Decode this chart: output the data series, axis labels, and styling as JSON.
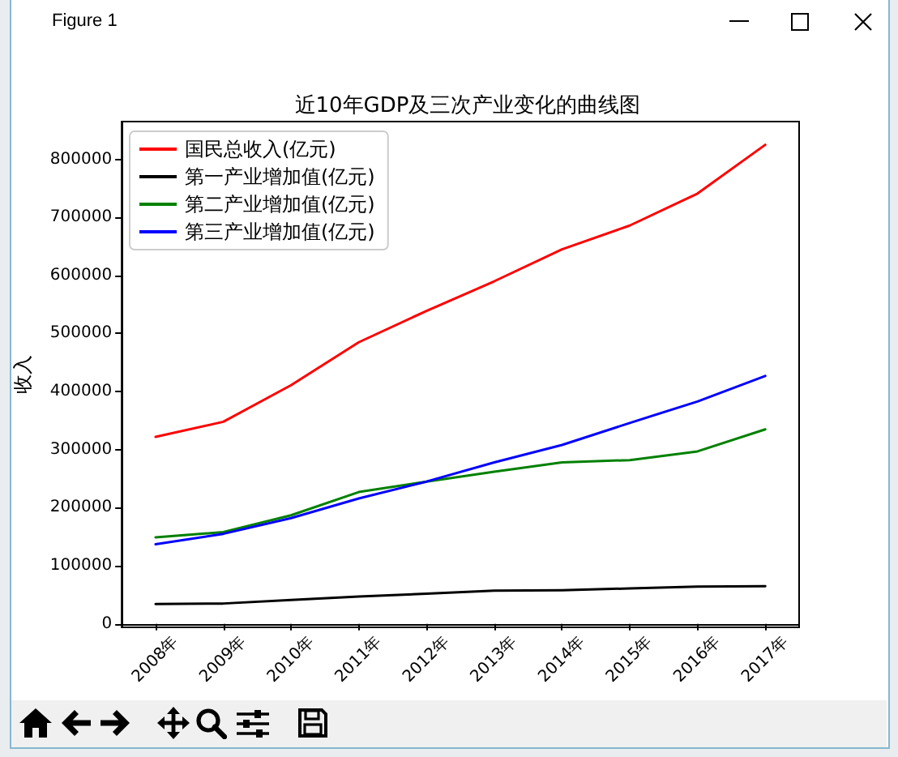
{
  "chart_data": {
    "type": "line",
    "title": "近10年GDP及三次产业变化的曲线图",
    "ylabel": "收入",
    "categories": [
      "2008年",
      "2009年",
      "2010年",
      "2011年",
      "2012年",
      "2013年",
      "2014年",
      "2015年",
      "2016年",
      "2017年"
    ],
    "series": [
      {
        "name": "国民总收入(亿元)",
        "color": "#ff0000",
        "values": [
          322000,
          348000,
          411000,
          485000,
          539000,
          590000,
          645000,
          686000,
          741000,
          825000
        ]
      },
      {
        "name": "第一产业增加值(亿元)",
        "color": "#000000",
        "values": [
          34000,
          35000,
          41000,
          47000,
          52000,
          57000,
          58000,
          61000,
          64000,
          65000
        ]
      },
      {
        "name": "第二产业增加值(亿元)",
        "color": "#008000",
        "values": [
          149000,
          158000,
          187000,
          227000,
          245000,
          262000,
          278000,
          282000,
          297000,
          335000
        ]
      },
      {
        "name": "第三产业增加值(亿元)",
        "color": "#0000ff",
        "values": [
          137000,
          155000,
          182000,
          216000,
          245000,
          278000,
          308000,
          346000,
          383000,
          427000
        ]
      }
    ],
    "ylim": [
      -6000,
      865000
    ],
    "yticks": [
      0,
      100000,
      200000,
      300000,
      400000,
      500000,
      600000,
      700000,
      800000
    ],
    "grid": false,
    "legend": "top left",
    "marker": "none",
    "line_style": "solid",
    "annotations": [
      "Figure 1"
    ]
  }
}
